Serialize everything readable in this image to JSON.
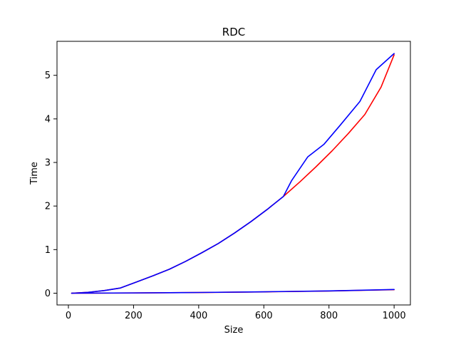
{
  "chart_data": {
    "type": "line",
    "title": "RDC",
    "xlabel": "Size",
    "ylabel": "Time",
    "xlim": [
      -35,
      1050
    ],
    "ylim": [
      -0.27,
      5.78
    ],
    "xticks": [
      0,
      200,
      400,
      600,
      800,
      1000
    ],
    "yticks": [
      0,
      1,
      2,
      3,
      4,
      5
    ],
    "grid": false,
    "legend": "none",
    "series": [
      {
        "name": "upper-red",
        "color": "#ff0000",
        "x": [
          10,
          60,
          110,
          160,
          210,
          260,
          310,
          360,
          410,
          460,
          510,
          560,
          610,
          660,
          710,
          760,
          810,
          860,
          910,
          960,
          1000
        ],
        "y": [
          0.0,
          0.02,
          0.06,
          0.12,
          0.26,
          0.4,
          0.55,
          0.73,
          0.93,
          1.14,
          1.38,
          1.64,
          1.92,
          2.22,
          2.55,
          2.9,
          3.27,
          3.67,
          4.1,
          4.73,
          5.47
        ]
      },
      {
        "name": "upper-blue",
        "color": "#0000ff",
        "x": [
          10,
          60,
          110,
          160,
          210,
          260,
          310,
          360,
          410,
          460,
          510,
          560,
          610,
          660,
          685,
          735,
          785,
          835,
          895,
          945,
          1000
        ],
        "y": [
          0.0,
          0.02,
          0.06,
          0.12,
          0.26,
          0.4,
          0.55,
          0.73,
          0.93,
          1.14,
          1.38,
          1.64,
          1.92,
          2.22,
          2.58,
          3.13,
          3.42,
          3.86,
          4.4,
          5.13,
          5.5
        ]
      },
      {
        "name": "lower-red",
        "color": "#ff0000",
        "x": [
          10,
          200,
          400,
          600,
          800,
          1000
        ],
        "y": [
          0.0,
          0.005,
          0.015,
          0.03,
          0.05,
          0.08
        ]
      },
      {
        "name": "lower-blue",
        "color": "#0000ff",
        "x": [
          10,
          200,
          400,
          600,
          800,
          1000
        ],
        "y": [
          0.0,
          0.006,
          0.016,
          0.032,
          0.052,
          0.085
        ]
      }
    ]
  }
}
